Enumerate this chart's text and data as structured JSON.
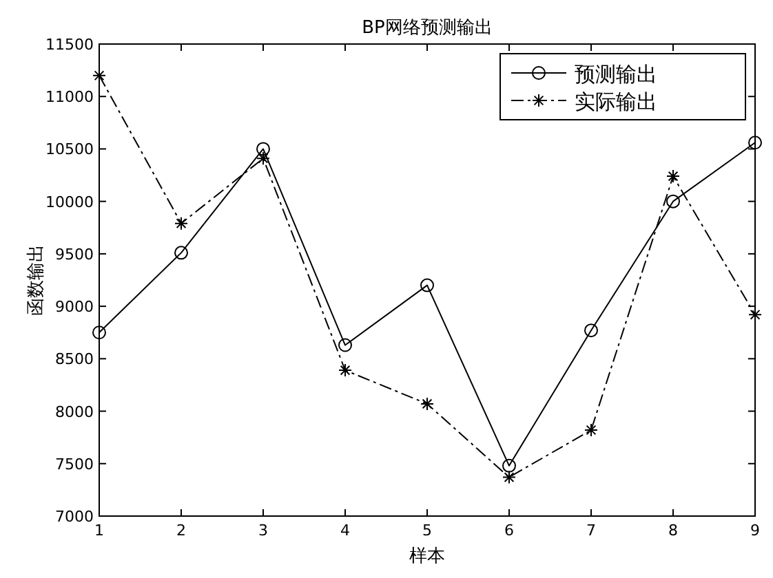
{
  "chart_data": {
    "type": "line",
    "title": "BP网络预测输出",
    "xlabel": "样本",
    "ylabel": "函数输出",
    "x": [
      1,
      2,
      3,
      4,
      5,
      6,
      7,
      8,
      9
    ],
    "series": [
      {
        "name": "预测输出",
        "color": "#000000",
        "marker": "circle",
        "line_style": "solid",
        "values": [
          8750,
          9510,
          10500,
          8630,
          9200,
          7480,
          8770,
          10000,
          10560
        ]
      },
      {
        "name": "实际输出",
        "color": "#000000",
        "marker": "cross",
        "line_style": "dashed",
        "values": [
          11200,
          9790,
          10410,
          8390,
          8070,
          7370,
          7820,
          10240,
          8920
        ]
      }
    ],
    "xlim": [
      1,
      9
    ],
    "xticks": [
      1,
      2,
      3,
      4,
      5,
      6,
      7,
      8,
      9
    ],
    "ylim": [
      7000,
      11500
    ],
    "yticks": [
      7000,
      7500,
      8000,
      8500,
      9000,
      9500,
      10000,
      10500,
      11000,
      11500
    ],
    "grid": false,
    "legend": "top right"
  }
}
